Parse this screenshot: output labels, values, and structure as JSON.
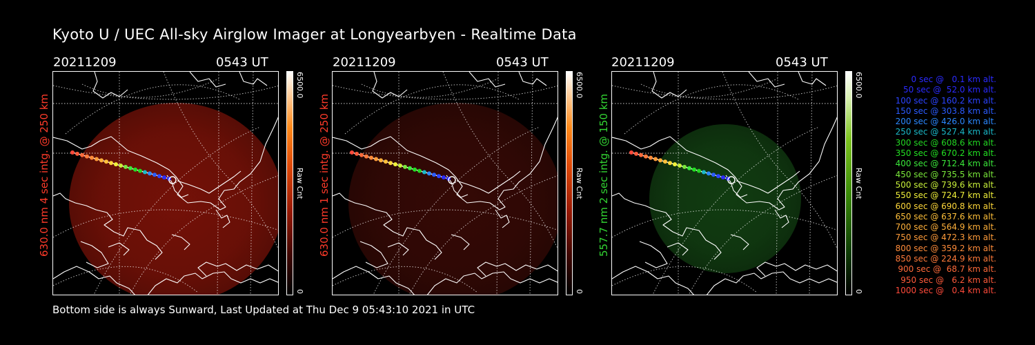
{
  "page": {
    "title": "Kyoto U / UEC All-sky Airglow Imager at Longyearbyen - Realtime Data",
    "footer": "Bottom side is always Sunward, Last Updated at Thu Dec  9 05:43:10 2021 in UTC"
  },
  "panels": [
    {
      "date": "20211209",
      "time": "0543 UT",
      "ylabel": "630.0 nm 4 sec intg. @ 250 km",
      "label_color": "#ff3b2a",
      "glow_color": "#7a1208",
      "glow_opacity": 0.95,
      "colorbar": {
        "max": "6500.0",
        "min": "0",
        "unit": "Raw Cnt",
        "scale": "red"
      }
    },
    {
      "date": "20211209",
      "time": "0543 UT",
      "ylabel": "630.0 nm 1 sec intg. @ 250 km",
      "label_color": "#ff3b2a",
      "glow_color": "#3a0a06",
      "glow_opacity": 0.9,
      "colorbar": {
        "max": "6500.0",
        "min": "0",
        "unit": "Raw Cnt",
        "scale": "red"
      }
    },
    {
      "date": "20211209",
      "time": "0543 UT",
      "ylabel": "557.7 nm 2 sec intg. @ 150 km",
      "label_color": "#33d633",
      "glow_color": "#123f12",
      "glow_opacity": 0.95,
      "colorbar": {
        "max": "6500.0",
        "min": "0",
        "unit": "Raw Cnt",
        "scale": "green"
      }
    }
  ],
  "legend": [
    {
      "text": "0 sec @   0.1 km alt.",
      "color": "#2b2bff"
    },
    {
      "text": "50 sec @  52.0 km alt.",
      "color": "#2b2bff"
    },
    {
      "text": "100 sec @ 160.2 km alt.",
      "color": "#2b44ff"
    },
    {
      "text": "150 sec @ 303.8 km alt.",
      "color": "#2b5cff"
    },
    {
      "text": "200 sec @ 426.0 km alt.",
      "color": "#2b88ff"
    },
    {
      "text": "250 sec @ 527.4 km alt.",
      "color": "#1ab8c8"
    },
    {
      "text": "300 sec @ 608.6 km alt.",
      "color": "#22d622"
    },
    {
      "text": "350 sec @ 670.2 km alt.",
      "color": "#22e022"
    },
    {
      "text": "400 sec @ 712.4 km alt.",
      "color": "#3ae83a"
    },
    {
      "text": "450 sec @ 735.5 km alt.",
      "color": "#7ae83a"
    },
    {
      "text": "500 sec @ 739.6 km alt.",
      "color": "#c8f03a"
    },
    {
      "text": "550 sec @ 724.7 km alt.",
      "color": "#f0f03a"
    },
    {
      "text": "600 sec @ 690.8 km alt.",
      "color": "#ffd83a"
    },
    {
      "text": "650 sec @ 637.6 km alt.",
      "color": "#ffc03a"
    },
    {
      "text": "700 sec @ 564.9 km alt.",
      "color": "#ffb03a"
    },
    {
      "text": "750 sec @ 472.3 km alt.",
      "color": "#ff9c3a"
    },
    {
      "text": "800 sec @ 359.2 km alt.",
      "color": "#ff8c3a"
    },
    {
      "text": "850 sec @ 224.9 km alt.",
      "color": "#ff7a3a"
    },
    {
      "text": "900 sec @  68.7 km alt.",
      "color": "#ff6a3a"
    },
    {
      "text": "950 sec @   6.2 km alt.",
      "color": "#ff5a3a"
    },
    {
      "text": "1000 sec @   0.4 km alt.",
      "color": "#ff4a3a"
    }
  ]
}
